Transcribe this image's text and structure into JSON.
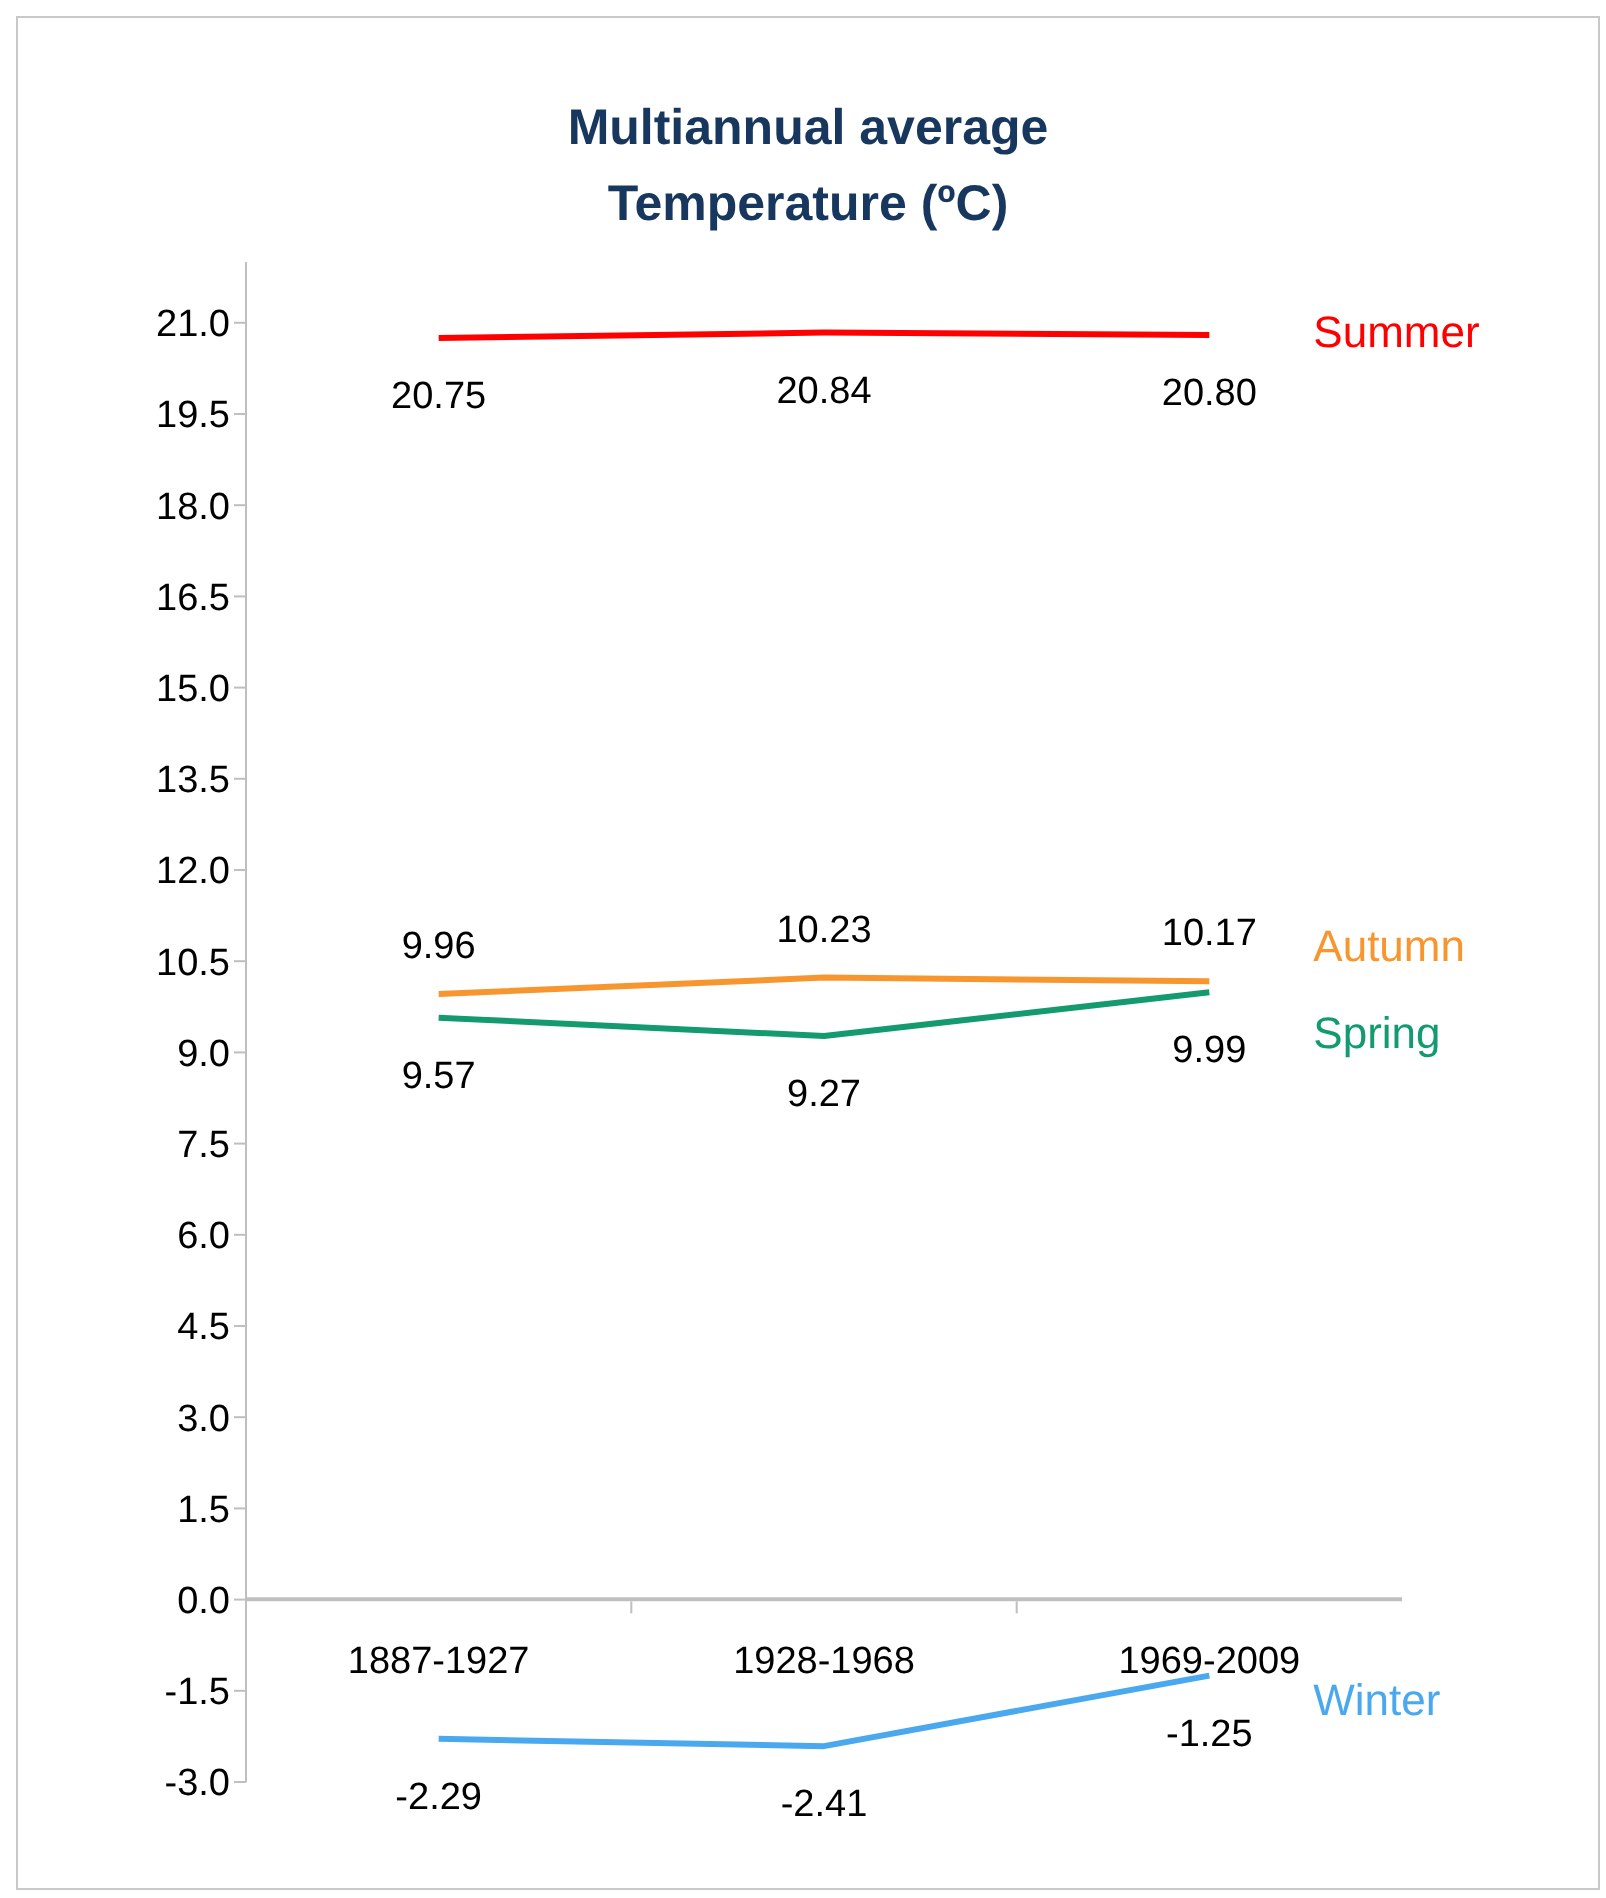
{
  "chart_data": {
    "type": "line",
    "title": "Multiannual average\nTemperature (ºC)",
    "categories": [
      "1887-1927",
      "1928-1968",
      "1969-2009"
    ],
    "series": [
      {
        "name": "Summer",
        "color": "#ff0000",
        "values": [
          20.75,
          20.84,
          20.8
        ],
        "value_labels": [
          "20.75",
          "20.84",
          "20.80"
        ]
      },
      {
        "name": "Autumn",
        "color": "#f7962e",
        "values": [
          9.96,
          10.23,
          10.17
        ],
        "value_labels": [
          "9.96",
          "10.23",
          "10.17"
        ]
      },
      {
        "name": "Spring",
        "color": "#139a6e",
        "values": [
          9.57,
          9.27,
          9.99
        ],
        "value_labels": [
          "9.57",
          "9.27",
          "9.99"
        ]
      },
      {
        "name": "Winter",
        "color": "#4aa8ee",
        "values": [
          -2.29,
          -2.41,
          -1.25
        ],
        "value_labels": [
          "-2.29",
          "-2.41",
          "-1.25"
        ]
      }
    ],
    "ylim": [
      -3,
      22
    ],
    "yticks": [
      {
        "value": -3,
        "label": "-3.0"
      },
      {
        "value": -1.5,
        "label": "-1.5"
      },
      {
        "value": 0,
        "label": "0.0"
      },
      {
        "value": 1.5,
        "label": "1.5"
      },
      {
        "value": 3,
        "label": "3.0"
      },
      {
        "value": 4.5,
        "label": "4.5"
      },
      {
        "value": 6,
        "label": "6.0"
      },
      {
        "value": 7.5,
        "label": "7.5"
      },
      {
        "value": 9,
        "label": "9.0"
      },
      {
        "value": 10.5,
        "label": "10.5"
      },
      {
        "value": 12,
        "label": "12.0"
      },
      {
        "value": 13.5,
        "label": "13.5"
      },
      {
        "value": 15,
        "label": "15.0"
      },
      {
        "value": 16.5,
        "label": "16.5"
      },
      {
        "value": 18,
        "label": "18.0"
      },
      {
        "value": 19.5,
        "label": "19.5"
      },
      {
        "value": 21,
        "label": "21.0"
      }
    ],
    "grid": false,
    "legend": false,
    "marker": "none",
    "line_style": "solid"
  }
}
